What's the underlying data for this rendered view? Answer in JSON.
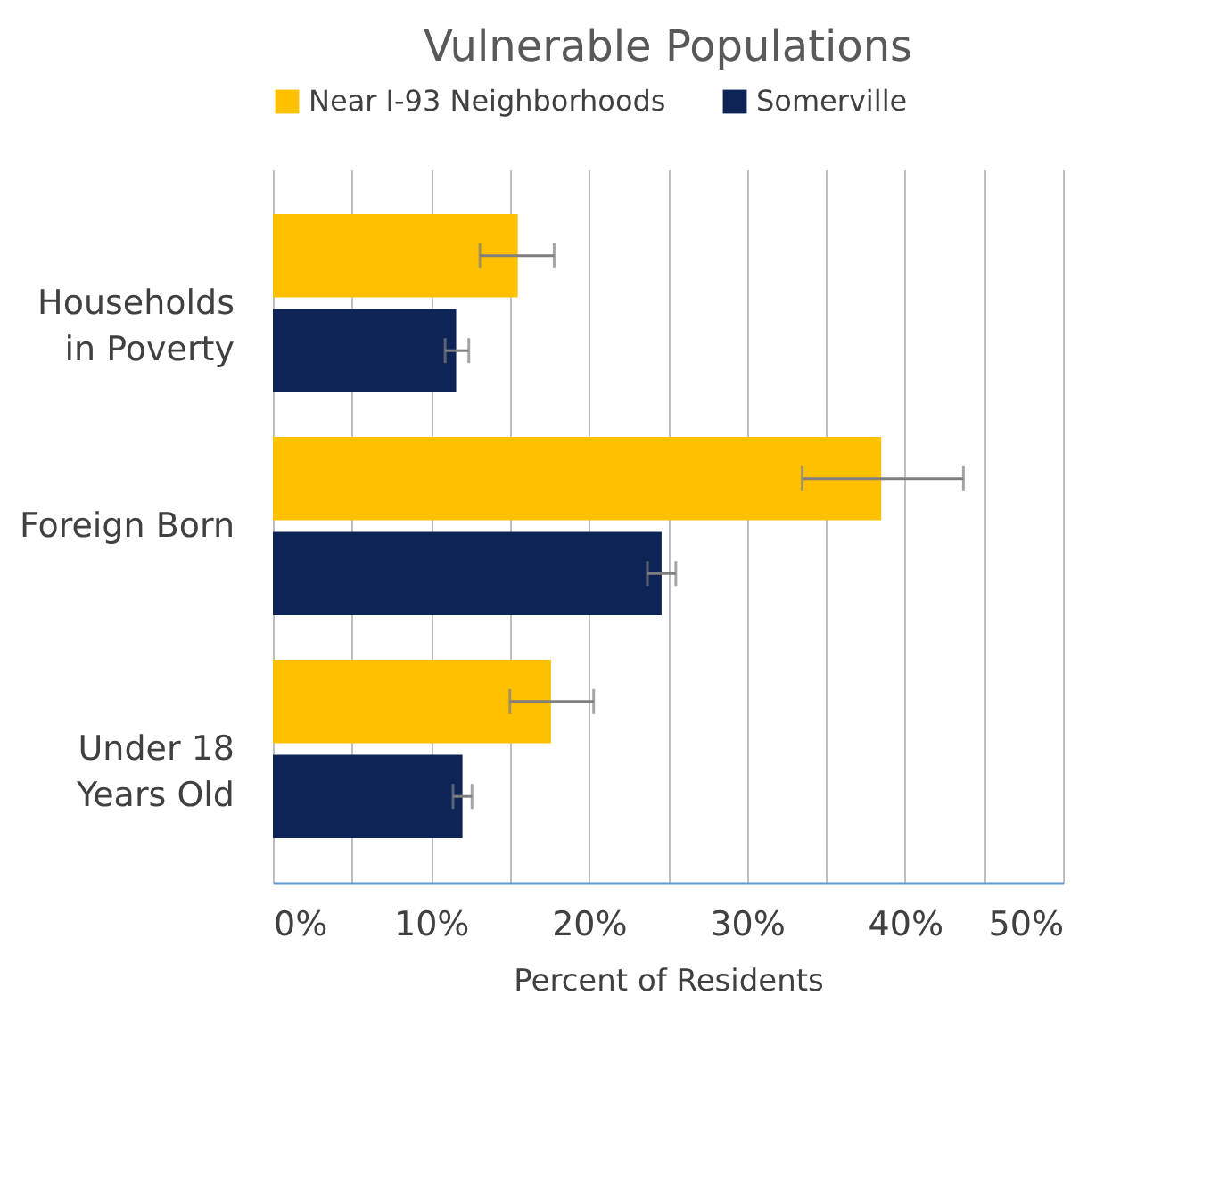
{
  "chart_data": {
    "type": "bar",
    "orientation": "horizontal",
    "title": "Vulnerable Populations",
    "xlabel": "Percent of Residents",
    "categories": [
      "Households in Poverty",
      "Foreign Born",
      "Under 18 Years Old"
    ],
    "series": [
      {
        "name": "Near I-93 Neighborhoods",
        "color": "#ffc000",
        "values": [
          15.5,
          38.5,
          17.6
        ],
        "errors": [
          [
            13.1,
            17.8
          ],
          [
            33.5,
            43.7
          ],
          [
            15.0,
            20.3
          ]
        ]
      },
      {
        "name": "Somerville",
        "color": "#0f2456",
        "values": [
          11.6,
          24.6,
          12.0
        ],
        "errors": [
          [
            10.9,
            12.4
          ],
          [
            23.7,
            25.5
          ],
          [
            11.4,
            12.6
          ]
        ]
      }
    ],
    "xlim": [
      0,
      50
    ],
    "xticks": [
      {
        "value": 0,
        "label": "0%"
      },
      {
        "value": 5,
        "label": null
      },
      {
        "value": 10,
        "label": "10%"
      },
      {
        "value": 15,
        "label": null
      },
      {
        "value": 20,
        "label": "20%"
      },
      {
        "value": 25,
        "label": null
      },
      {
        "value": 30,
        "label": "30%"
      },
      {
        "value": 35,
        "label": null
      },
      {
        "value": 40,
        "label": "40%"
      },
      {
        "value": 45,
        "label": null
      },
      {
        "value": 50,
        "label": "50%"
      }
    ],
    "grid": "x",
    "legend": "top"
  }
}
